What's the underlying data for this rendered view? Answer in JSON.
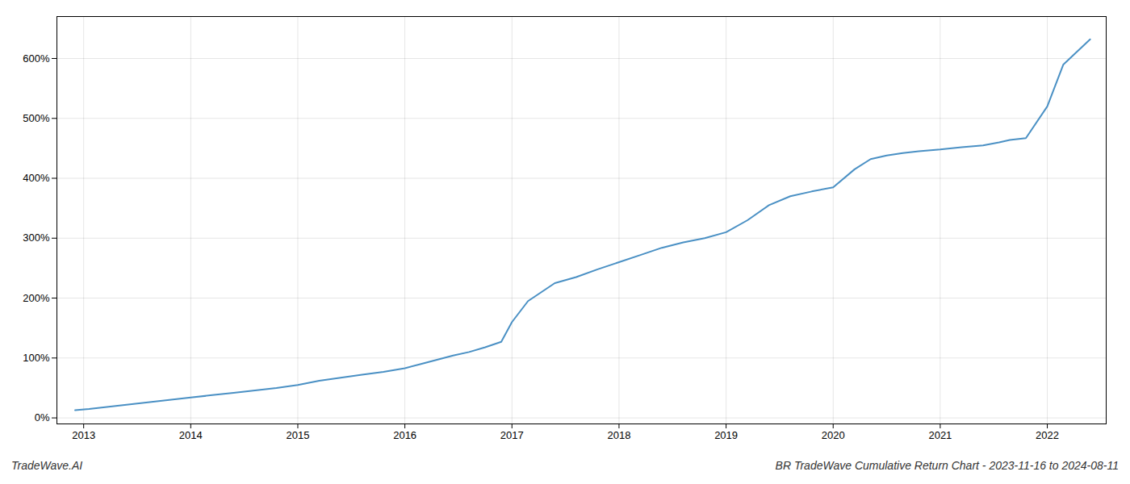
{
  "chart_data": {
    "type": "line",
    "x": [
      2012.92,
      2013.05,
      2013.2,
      2013.4,
      2013.6,
      2013.8,
      2014.0,
      2014.2,
      2014.4,
      2014.6,
      2014.8,
      2015.0,
      2015.2,
      2015.4,
      2015.6,
      2015.8,
      2016.0,
      2016.15,
      2016.3,
      2016.45,
      2016.6,
      2016.75,
      2016.9,
      2017.0,
      2017.15,
      2017.4,
      2017.6,
      2017.8,
      2018.0,
      2018.2,
      2018.4,
      2018.6,
      2018.8,
      2019.0,
      2019.2,
      2019.4,
      2019.6,
      2019.8,
      2020.0,
      2020.2,
      2020.35,
      2020.5,
      2020.65,
      2020.8,
      2021.0,
      2021.2,
      2021.4,
      2021.55,
      2021.65,
      2021.8,
      2022.0,
      2022.15,
      2022.4
    ],
    "values": [
      13,
      15,
      18,
      22,
      26,
      30,
      34,
      38,
      42,
      46,
      50,
      55,
      62,
      67,
      72,
      77,
      83,
      90,
      97,
      104,
      110,
      118,
      127,
      160,
      195,
      225,
      235,
      248,
      260,
      272,
      284,
      293,
      300,
      310,
      330,
      355,
      370,
      378,
      385,
      415,
      432,
      438,
      442,
      445,
      448,
      452,
      455,
      460,
      464,
      467,
      520,
      590,
      632
    ],
    "color": "#4a90c4",
    "xlim": [
      2012.75,
      2022.55
    ],
    "xticks": [
      2013,
      2014,
      2015,
      2016,
      2017,
      2018,
      2019,
      2020,
      2021,
      2022
    ],
    "ylim": [
      -10,
      670
    ],
    "yticks": [
      {
        "value": 0,
        "label": "0%"
      },
      {
        "value": 100,
        "label": "100%"
      },
      {
        "value": 200,
        "label": "200%"
      },
      {
        "value": 300,
        "label": "300%"
      },
      {
        "value": 400,
        "label": "400%"
      },
      {
        "value": 500,
        "label": "500%"
      },
      {
        "value": 600,
        "label": "600%"
      }
    ],
    "grid": true,
    "annotations": [
      "TradeWave.AI",
      "BR TradeWave Cumulative Return Chart - 2023-11-16 to 2024-08-11"
    ]
  }
}
